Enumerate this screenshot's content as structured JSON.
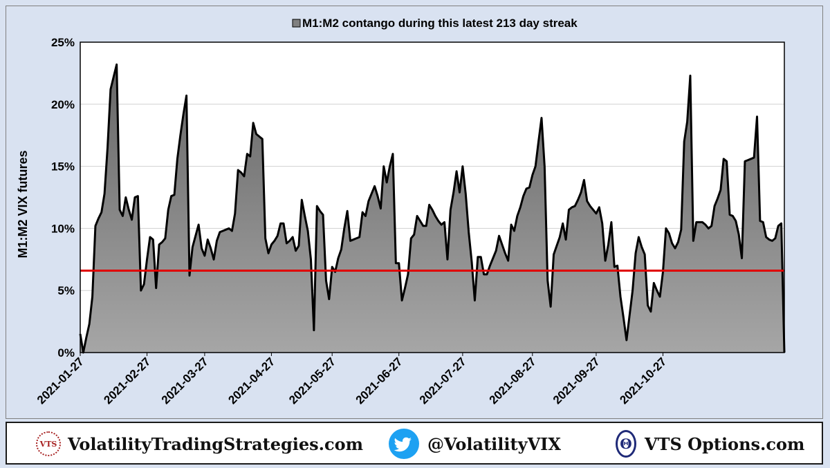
{
  "chart_data": {
    "type": "area",
    "title": "M1:M2 contango during this latest 213 day streak",
    "legend_position": "top-center",
    "ylabel": "M1:M2 VIX futures",
    "xlabel": "",
    "ylim": [
      0,
      25
    ],
    "yticks": [
      "0%",
      "5%",
      "10%",
      "15%",
      "20%",
      "25%"
    ],
    "yticks_values": [
      0,
      5,
      10,
      15,
      20,
      25
    ],
    "xticks": [
      "2021-01-27",
      "2021-02-27",
      "2021-03-27",
      "2021-04-27",
      "2021-05-27",
      "2021-06-27",
      "2021-07-27",
      "2021-08-27",
      "2021-09-27",
      "2021-10-27"
    ],
    "xticks_index": [
      0,
      22,
      41,
      63,
      83,
      105,
      126,
      149,
      170,
      192
    ],
    "grid": "horizontal",
    "reference_line": {
      "value": 6.6,
      "color": "#e00000"
    },
    "series": [
      {
        "name": "M1:M2 contango during this latest 213 day streak",
        "color": "#808080",
        "values": [
          1.5,
          0,
          1.2,
          2.3,
          4.5,
          10.2,
          10.8,
          11.3,
          12.8,
          16.5,
          21.2,
          22.2,
          23.2,
          11.5,
          11.0,
          12.5,
          11.5,
          10.7,
          12.5,
          12.6,
          5.0,
          5.5,
          7.5,
          9.3,
          9.1,
          5.2,
          8.7,
          8.9,
          9.2,
          11.5,
          12.6,
          12.7,
          15.6,
          17.5,
          19.2,
          20.7,
          6.2,
          8.5,
          9.4,
          10.3,
          8.4,
          7.8,
          9.1,
          8.4,
          7.5,
          9.0,
          9.7,
          9.8,
          9.9,
          10.0,
          9.8,
          11.2,
          14.7,
          14.5,
          14.2,
          16.0,
          15.8,
          18.5,
          17.6,
          17.4,
          17.2,
          9.2,
          8.0,
          8.7,
          9.0,
          9.4,
          10.4,
          10.4,
          8.8,
          9.0,
          9.3,
          8.2,
          8.6,
          12.3,
          11.0,
          9.8,
          7.5,
          1.8,
          11.8,
          11.4,
          11.1,
          5.8,
          4.3,
          6.9,
          6.5,
          7.6,
          8.3,
          10.0,
          11.4,
          9.0,
          9.1,
          9.2,
          9.3,
          11.3,
          11.0,
          12.2,
          12.8,
          13.4,
          12.6,
          11.6,
          15.0,
          13.7,
          15.0,
          16.0,
          7.2,
          7.2,
          4.2,
          5.2,
          6.3,
          9.2,
          9.5,
          11.0,
          10.6,
          10.2,
          10.2,
          11.9,
          11.5,
          11.0,
          10.6,
          10.3,
          10.5,
          7.5,
          11.5,
          12.9,
          14.6,
          12.9,
          15.0,
          12.8,
          9.7,
          7.3,
          4.2,
          7.7,
          7.7,
          6.3,
          6.3,
          7.0,
          7.6,
          8.2,
          9.4,
          8.7,
          8.0,
          7.4,
          10.3,
          9.8,
          11.0,
          11.7,
          12.6,
          13.2,
          13.3,
          14.3,
          15.0,
          17.0,
          18.9,
          15.0,
          5.8,
          3.7,
          7.9,
          8.6,
          9.3,
          10.4,
          9.1,
          11.5,
          11.7,
          11.8,
          12.3,
          12.9,
          13.9,
          12.2,
          11.8,
          11.5,
          11.2,
          11.7,
          10.4,
          7.4,
          8.7,
          10.5,
          6.9,
          7.0,
          4.5,
          2.8,
          1.0,
          3.0,
          5.0,
          8.0,
          9.3,
          8.5,
          7.9,
          3.8,
          3.3,
          5.6,
          5.0,
          4.5,
          6.5,
          10.0,
          9.6,
          8.8,
          8.4,
          8.9,
          9.9,
          17.0,
          18.6,
          22.3,
          9.0,
          10.5,
          10.5,
          10.5,
          10.3,
          10.0,
          10.2,
          11.8,
          12.4,
          13.1,
          15.6,
          15.4,
          11.1,
          11.0,
          10.6,
          9.5,
          7.6,
          15.4,
          15.5,
          15.6,
          15.7,
          19.0,
          10.6,
          10.5,
          9.3,
          9.1,
          9.0,
          9.2,
          10.2,
          10.4,
          0
        ]
      }
    ]
  },
  "footer": {
    "site1": "VolatilityTradingStrategies.com",
    "site1_logo_text": "VTS",
    "twitter": "@VolatilityVIX",
    "site2": "VTS Options.com",
    "site2_logo_glyph": "Θ"
  },
  "colors": {
    "background": "#d9e2f1",
    "area_fill_top": "#666666",
    "area_fill_bottom": "#a6a6a6",
    "outline": "#000000",
    "reference_line": "#e00000",
    "twitter_blue": "#1da1f2",
    "vts_red": "#a61e1e",
    "theta_blue": "#1f2a78"
  },
  "icons": {
    "vts_logo": "vts-logo-icon",
    "twitter_logo": "twitter-bird-icon",
    "theta_logo": "theta-logo-icon"
  }
}
